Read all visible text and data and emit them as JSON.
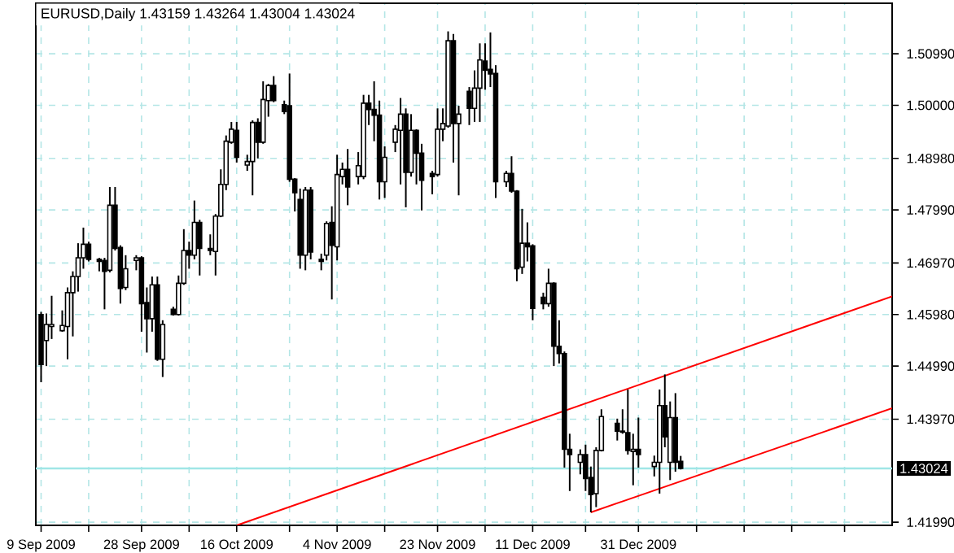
{
  "chart_data": {
    "type": "candlestick",
    "title": "EURUSD,Daily  1.43159 1.43264 1.43004 1.43024",
    "color": "#000000",
    "grid": true,
    "x": [
      "2009-09-09",
      "2009-09-10",
      "2009-09-11",
      "2009-09-13",
      "2009-09-14",
      "2009-09-15",
      "2009-09-16",
      "2009-09-17",
      "2009-09-18",
      "2009-09-20",
      "2009-09-21",
      "2009-09-22",
      "2009-09-23",
      "2009-09-24",
      "2009-09-25",
      "2009-09-27",
      "2009-09-28",
      "2009-09-29",
      "2009-09-30",
      "2009-10-01",
      "2009-10-02",
      "2009-10-04",
      "2009-10-05",
      "2009-10-06",
      "2009-10-07",
      "2009-10-08",
      "2009-10-09",
      "2009-10-11",
      "2009-10-12",
      "2009-10-13",
      "2009-10-14",
      "2009-10-15",
      "2009-10-16",
      "2009-10-18",
      "2009-10-19",
      "2009-10-20",
      "2009-10-21",
      "2009-10-22",
      "2009-10-23",
      "2009-10-25",
      "2009-10-26",
      "2009-10-27",
      "2009-10-28",
      "2009-10-29",
      "2009-10-30",
      "2009-11-01",
      "2009-11-02",
      "2009-11-03",
      "2009-11-04",
      "2009-11-05",
      "2009-11-06",
      "2009-11-08",
      "2009-11-09",
      "2009-11-10",
      "2009-11-11",
      "2009-11-12",
      "2009-11-13",
      "2009-11-15",
      "2009-11-16",
      "2009-11-17",
      "2009-11-18",
      "2009-11-19",
      "2009-11-20",
      "2009-11-22",
      "2009-11-23",
      "2009-11-24",
      "2009-11-25",
      "2009-11-26",
      "2009-11-27",
      "2009-11-29",
      "2009-11-30",
      "2009-12-01",
      "2009-12-02",
      "2009-12-03",
      "2009-12-04",
      "2009-12-06",
      "2009-12-07",
      "2009-12-08",
      "2009-12-09",
      "2009-12-10",
      "2009-12-11",
      "2009-12-13",
      "2009-12-14",
      "2009-12-15",
      "2009-12-16",
      "2009-12-17",
      "2009-12-18",
      "2009-12-20",
      "2009-12-21",
      "2009-12-22",
      "2009-12-23",
      "2009-12-24",
      "2009-12-27",
      "2009-12-28",
      "2009-12-29",
      "2009-12-30",
      "2009-12-31",
      "2010-01-03",
      "2010-01-04",
      "2010-01-05",
      "2010-01-06",
      "2010-01-07",
      "2010-01-08"
    ],
    "ohlc": [
      [
        1.4598,
        1.4603,
        1.4468,
        1.4502
      ],
      [
        1.4548,
        1.46,
        1.4499,
        1.4579
      ],
      [
        1.4575,
        1.4634,
        1.4551,
        1.4579
      ],
      [
        1.4567,
        1.4606,
        1.4565,
        1.4577
      ],
      [
        1.4575,
        1.465,
        1.4512,
        1.464
      ],
      [
        1.464,
        1.4681,
        1.4556,
        1.4671
      ],
      [
        1.4671,
        1.4735,
        1.4642,
        1.4707
      ],
      [
        1.4707,
        1.4765,
        1.4686,
        1.4733
      ],
      [
        1.4733,
        1.4738,
        1.47,
        1.4704
      ],
      [
        1.4704,
        1.4707,
        1.4681,
        1.47
      ],
      [
        1.4702,
        1.4707,
        1.4608,
        1.4681
      ],
      [
        1.4683,
        1.4843,
        1.4679,
        1.4808
      ],
      [
        1.4808,
        1.4843,
        1.4721,
        1.4725
      ],
      [
        1.4727,
        1.4731,
        1.4619,
        1.4648
      ],
      [
        1.465,
        1.4712,
        1.4645,
        1.4686
      ],
      [
        1.4702,
        1.4712,
        1.4683,
        1.4707
      ],
      [
        1.4707,
        1.471,
        1.4565,
        1.4619
      ],
      [
        1.4621,
        1.465,
        1.4525,
        1.459
      ],
      [
        1.459,
        1.4671,
        1.4565,
        1.4655
      ],
      [
        1.4655,
        1.4671,
        1.4509,
        1.4512
      ],
      [
        1.4512,
        1.4587,
        1.4478,
        1.4579
      ],
      [
        1.4608,
        1.4613,
        1.4596,
        1.4598
      ],
      [
        1.4598,
        1.4673,
        1.4596,
        1.4658
      ],
      [
        1.4658,
        1.4762,
        1.4655,
        1.4721
      ],
      [
        1.4721,
        1.4738,
        1.4686,
        1.4712
      ],
      [
        1.4712,
        1.4817,
        1.4704,
        1.4775
      ],
      [
        1.4775,
        1.478,
        1.4673,
        1.4725
      ],
      [
        1.4725,
        1.4752,
        1.4712,
        1.4721
      ],
      [
        1.4719,
        1.4791,
        1.4673,
        1.4787
      ],
      [
        1.4787,
        1.4877,
        1.4785,
        1.4848
      ],
      [
        1.4848,
        1.4942,
        1.4837,
        1.4931
      ],
      [
        1.4929,
        1.4968,
        1.4926,
        1.4954
      ],
      [
        1.4952,
        1.4968,
        1.489,
        1.49
      ],
      [
        1.4885,
        1.4905,
        1.4874,
        1.4892
      ],
      [
        1.4892,
        1.4971,
        1.4827,
        1.4967
      ],
      [
        1.4967,
        1.4975,
        1.4898,
        1.4929
      ],
      [
        1.4929,
        1.5046,
        1.4926,
        1.5011
      ],
      [
        1.5009,
        1.5041,
        1.4978,
        1.5038
      ],
      [
        1.5038,
        1.5056,
        1.5006,
        1.5009
      ],
      [
        1.5001,
        1.5009,
        1.4983,
        1.4988
      ],
      [
        1.4999,
        1.5061,
        1.4853,
        1.4858
      ],
      [
        1.4858,
        1.486,
        1.4796,
        1.4832
      ],
      [
        1.4819,
        1.484,
        1.4686,
        1.4712
      ],
      [
        1.4712,
        1.4843,
        1.4683,
        1.4837
      ],
      [
        1.4837,
        1.4843,
        1.4704,
        1.4718
      ],
      [
        1.4704,
        1.4715,
        1.4683,
        1.47
      ],
      [
        1.4712,
        1.4777,
        1.4702,
        1.4773
      ],
      [
        1.4775,
        1.4806,
        1.4627,
        1.4731
      ],
      [
        1.4728,
        1.4905,
        1.4702,
        1.4867
      ],
      [
        1.4863,
        1.489,
        1.4848,
        1.4877
      ],
      [
        1.4877,
        1.4916,
        1.4808,
        1.4843
      ],
      [
        1.4863,
        1.491,
        1.4848,
        1.4884
      ],
      [
        1.4863,
        1.502,
        1.4858,
        1.5004
      ],
      [
        1.5004,
        1.502,
        1.4962,
        1.4992
      ],
      [
        1.4992,
        1.5046,
        1.4931,
        1.4981
      ],
      [
        1.4981,
        1.5009,
        1.4819,
        1.4853
      ],
      [
        1.4853,
        1.4921,
        1.4822,
        1.49
      ],
      [
        1.4929,
        1.4962,
        1.491,
        1.4954
      ],
      [
        1.4952,
        1.5014,
        1.4848,
        1.4983
      ],
      [
        1.4983,
        1.4994,
        1.4804,
        1.4871
      ],
      [
        1.4871,
        1.4983,
        1.4863,
        1.4952
      ],
      [
        1.4952,
        1.4954,
        1.4848,
        1.4908
      ],
      [
        1.4908,
        1.4926,
        1.4798,
        1.4856
      ],
      [
        1.4869,
        1.4874,
        1.4829,
        1.4863
      ],
      [
        1.4867,
        1.4994,
        1.4863,
        1.4954
      ],
      [
        1.4954,
        1.4994,
        1.4931,
        1.4965
      ],
      [
        1.496,
        1.5142,
        1.4957,
        1.5124
      ],
      [
        1.5124,
        1.5137,
        1.489,
        1.4965
      ],
      [
        1.4965,
        1.4999,
        1.4827,
        1.4983
      ],
      [
        1.5027,
        1.5035,
        1.4962,
        1.4994
      ],
      [
        1.4994,
        1.5067,
        1.4968,
        1.5033
      ],
      [
        1.5033,
        1.5119,
        1.4968,
        1.5087
      ],
      [
        1.5085,
        1.5119,
        1.503,
        1.5067
      ],
      [
        1.5069,
        1.514,
        1.5035,
        1.506
      ],
      [
        1.5061,
        1.5077,
        1.4822,
        1.4853
      ],
      [
        1.4853,
        1.4874,
        1.4843,
        1.4869
      ],
      [
        1.4869,
        1.4902,
        1.4832,
        1.4835
      ],
      [
        1.4835,
        1.4837,
        1.4662,
        1.4686
      ],
      [
        1.4689,
        1.4801,
        1.4676,
        1.4735
      ],
      [
        1.4735,
        1.4775,
        1.47,
        1.4728
      ],
      [
        1.473,
        1.4733,
        1.4587,
        1.461
      ],
      [
        1.4631,
        1.464,
        1.4608,
        1.4619
      ],
      [
        1.4619,
        1.4686,
        1.4613,
        1.4658
      ],
      [
        1.4658,
        1.466,
        1.4499,
        1.4537
      ],
      [
        1.4537,
        1.4587,
        1.4504,
        1.4523
      ],
      [
        1.4523,
        1.4527,
        1.4304,
        1.4339
      ],
      [
        1.4339,
        1.4369,
        1.4259,
        1.4329
      ],
      [
        1.4314,
        1.4339,
        1.4291,
        1.4329
      ],
      [
        1.4329,
        1.4348,
        1.4259,
        1.4283
      ],
      [
        1.4285,
        1.4306,
        1.4218,
        1.4252
      ],
      [
        1.4254,
        1.4343,
        1.4228,
        1.4337
      ],
      [
        1.4337,
        1.4416,
        1.4335,
        1.4402
      ],
      [
        1.4389,
        1.4398,
        1.4356,
        1.4374
      ],
      [
        1.4374,
        1.4416,
        1.4369,
        1.4372
      ],
      [
        1.4371,
        1.4454,
        1.4329,
        1.4337
      ],
      [
        1.4335,
        1.4369,
        1.427,
        1.4339
      ],
      [
        1.4339,
        1.44,
        1.4304,
        1.4329
      ],
      [
        1.4306,
        1.4327,
        1.4287,
        1.4314
      ],
      [
        1.4314,
        1.4454,
        1.4254,
        1.4423
      ],
      [
        1.4423,
        1.4483,
        1.4343,
        1.4363
      ],
      [
        1.4314,
        1.4431,
        1.428,
        1.44
      ],
      [
        1.44,
        1.4447,
        1.4296,
        1.4314
      ],
      [
        1.43159,
        1.43264,
        1.43004,
        1.43024
      ]
    ],
    "series": [
      {
        "type": "line",
        "color": "#ff0000",
        "x": [
          "2009-10-16",
          "2010-02-17"
        ],
        "values": [
          1.4193,
          1.4633
        ]
      },
      {
        "type": "line",
        "color": "#ff0000",
        "x": [
          "2009-12-22",
          "2010-02-17"
        ],
        "values": [
          1.4218,
          1.4418
        ]
      }
    ],
    "xlim": [
      "2009-09-08",
      "2010-02-17"
    ],
    "ylim": [
      1.4193,
      1.5196
    ],
    "xticks": [
      {
        "value": "2009-09-09",
        "label": "9 Sep 2009"
      },
      {
        "value": "2009-09-18",
        "label": null
      },
      {
        "value": "2009-09-28",
        "label": "28 Sep 2009"
      },
      {
        "value": "2009-10-07",
        "label": null
      },
      {
        "value": "2009-10-16",
        "label": "16 Oct 2009"
      },
      {
        "value": "2009-10-26",
        "label": null
      },
      {
        "value": "2009-11-04",
        "label": "4 Nov 2009"
      },
      {
        "value": "2009-11-13",
        "label": null
      },
      {
        "value": "2009-11-23",
        "label": "23 Nov 2009"
      },
      {
        "value": "2009-12-02",
        "label": null
      },
      {
        "value": "2009-12-11",
        "label": "11 Dec 2009"
      },
      {
        "value": "2009-12-21",
        "label": null
      },
      {
        "value": "2009-12-31",
        "label": "31 Dec 2009"
      },
      {
        "value": "2010-01-11",
        "label": null
      },
      {
        "value": "2010-01-20",
        "label": null
      },
      {
        "value": "2010-01-29",
        "label": null
      },
      {
        "value": "2010-02-08",
        "label": null
      }
    ],
    "yticks": [
      {
        "value": 1.4199,
        "label": "1.41990"
      },
      {
        "value": 1.4397,
        "label": "1.43970"
      },
      {
        "value": 1.4499,
        "label": "1.44990"
      },
      {
        "value": 1.4598,
        "label": "1.45980"
      },
      {
        "value": 1.4697,
        "label": "1.46970"
      },
      {
        "value": 1.4799,
        "label": "1.47990"
      },
      {
        "value": 1.4898,
        "label": "1.48980"
      },
      {
        "value": 1.5,
        "label": "1.50000"
      },
      {
        "value": 1.5099,
        "label": "1.50990"
      }
    ],
    "ref_lines": [
      {
        "axis": "y",
        "value": 1.43024,
        "label": "1.43024",
        "color": "#a0e6e6"
      }
    ]
  }
}
